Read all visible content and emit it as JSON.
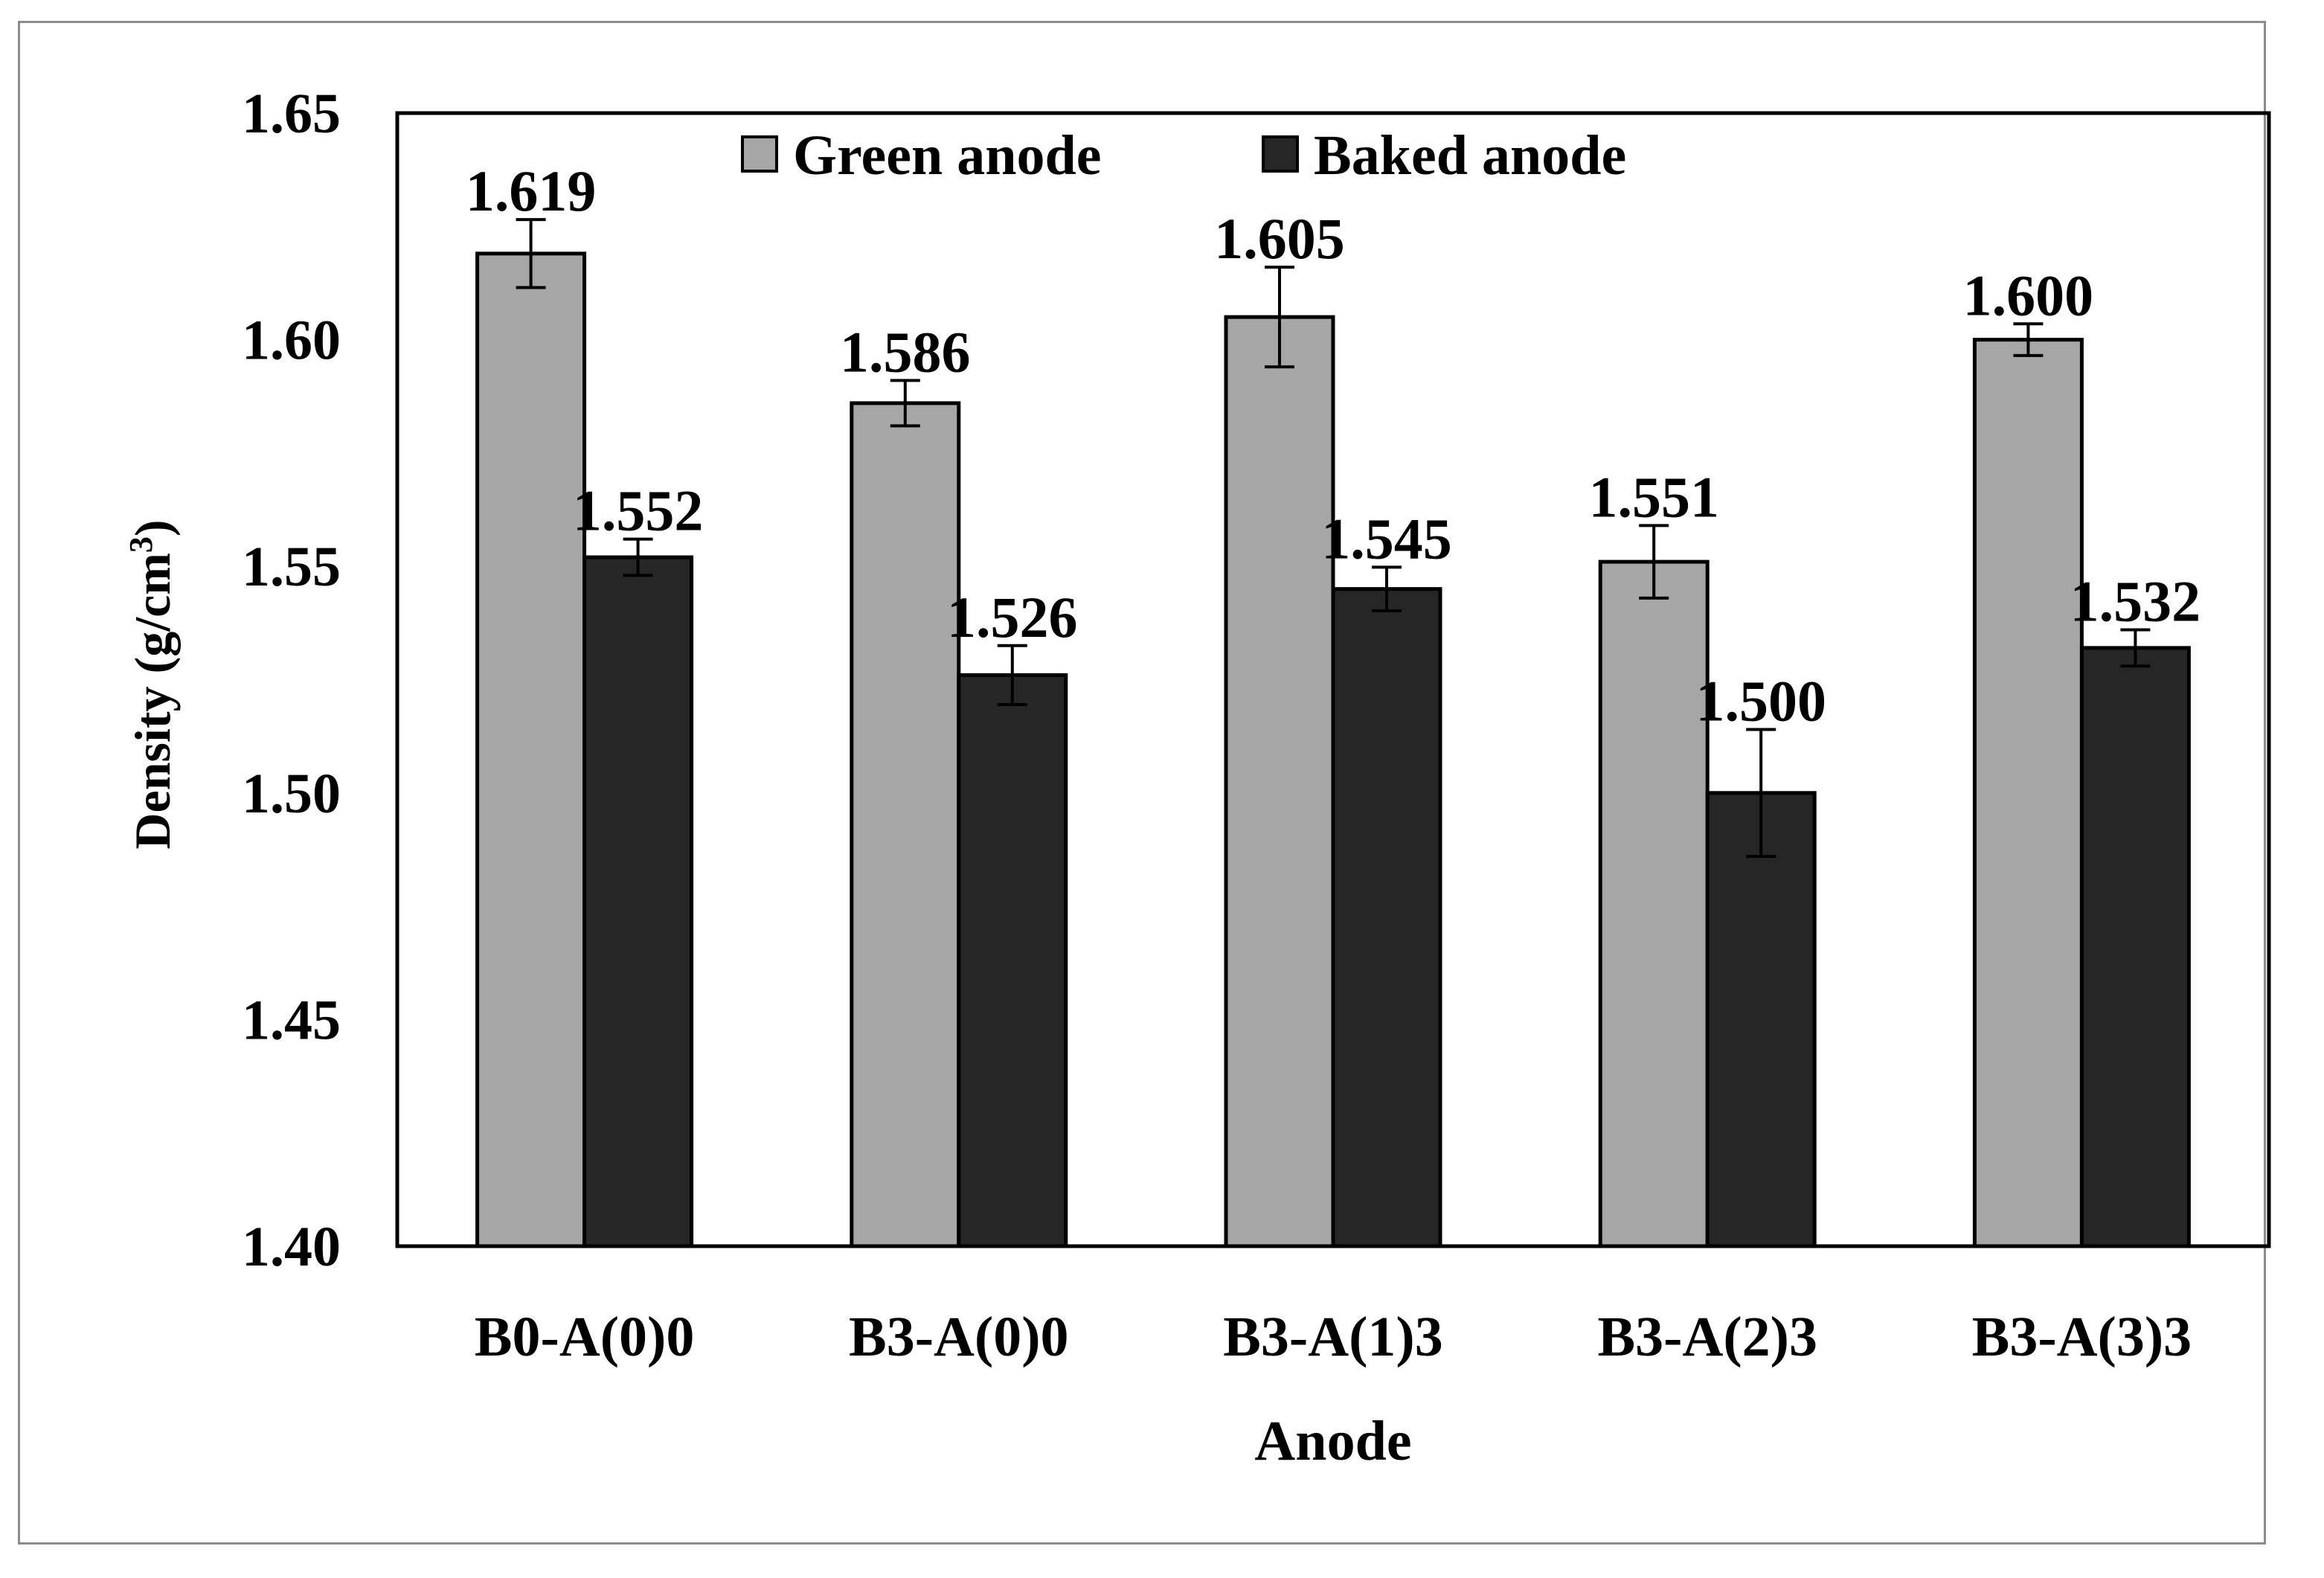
{
  "chart_data": {
    "type": "bar",
    "title": "",
    "xlabel": "Anode",
    "ylabel": "Density (g/cm3)",
    "ylabel_parts": {
      "main": "Density (g/cm",
      "superscript": "3",
      "close": ")"
    },
    "ylim": [
      1.4,
      1.65
    ],
    "yticks": [
      1.4,
      1.45,
      1.5,
      1.55,
      1.6,
      1.65
    ],
    "ytick_labels": [
      "1.40",
      "1.45",
      "1.50",
      "1.55",
      "1.60",
      "1.65"
    ],
    "categories": [
      "B0-A(0)0",
      "B3-A(0)0",
      "B3-A(1)3",
      "B3-A(2)3",
      "B3-A(3)3"
    ],
    "series": [
      {
        "name": "Green anode",
        "color": "#a6a6a6",
        "values": [
          1.619,
          1.586,
          1.605,
          1.551,
          1.6
        ],
        "labels": [
          "1.619",
          "1.586",
          "1.605",
          "1.551",
          "1.600"
        ],
        "errors": [
          0.0075,
          0.005,
          0.011,
          0.008,
          0.0035
        ]
      },
      {
        "name": "Baked anode",
        "color": "#262626",
        "values": [
          1.552,
          1.526,
          1.545,
          1.5,
          1.532
        ],
        "labels": [
          "1.552",
          "1.526",
          "1.545",
          "1.500",
          "1.532"
        ],
        "errors": [
          0.004,
          0.0065,
          0.0048,
          0.014,
          0.004
        ]
      }
    ],
    "legend": "top-center",
    "grid": false
  }
}
